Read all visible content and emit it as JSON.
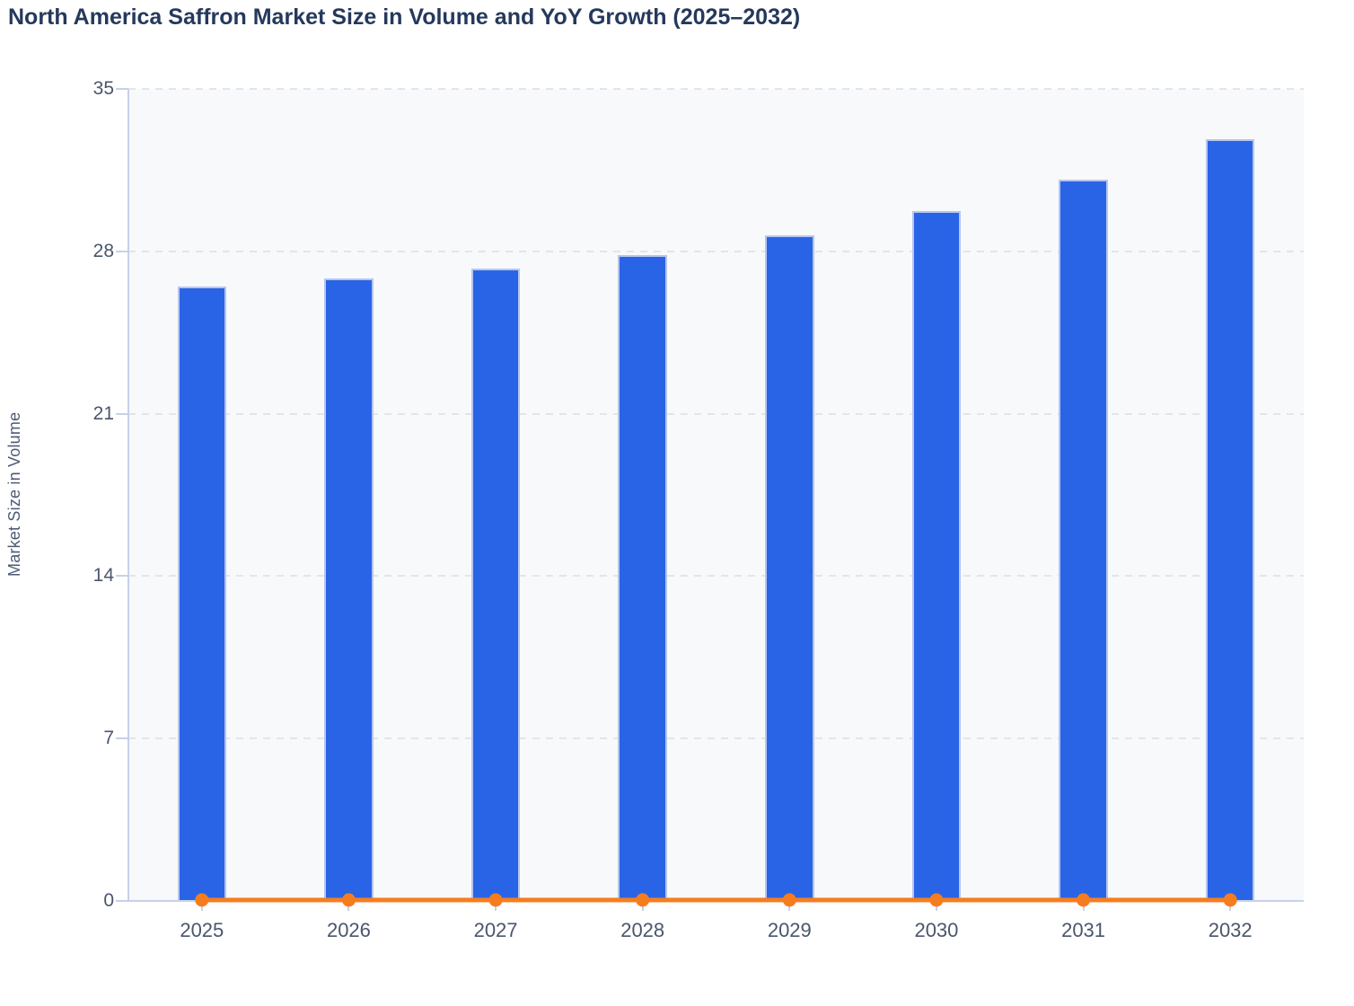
{
  "chart": {
    "title": "North America Saffron Market Size in Volume and YoY Growth (2025–2032)",
    "y_axis_title": "Market Size in Volume"
  },
  "chart_data": {
    "type": "bar",
    "title": "North America Saffron Market Size in Volume and YoY Growth (2025–2032)",
    "categories": [
      "2025",
      "2026",
      "2027",
      "2028",
      "2029",
      "2030",
      "2031",
      "2032"
    ],
    "series": [
      {
        "name": "Market Size in Volume",
        "type": "bar",
        "color": "#2a64e6",
        "values": [
          26.5,
          26.85,
          27.25,
          27.85,
          28.7,
          29.75,
          31.1,
          32.85
        ]
      },
      {
        "name": "YoY Growth",
        "type": "line",
        "color": "#f57d1f",
        "marker": "circle",
        "values": [
          0,
          0,
          0,
          0,
          0,
          0,
          0,
          0
        ]
      }
    ],
    "xlabel": "",
    "ylabel": "Market Size in Volume",
    "ylim": [
      0,
      35
    ],
    "yticks": [
      0,
      7,
      14,
      21,
      28,
      35
    ],
    "grid": "horizontal-dashed",
    "legend_position": "none",
    "plot_background": "#f8f9fb"
  },
  "colors": {
    "bar_fill": "#2a64e6",
    "bar_border": "#b7c5ee",
    "line": "#f57d1f",
    "axis": "#c7d1e7",
    "gridline": "#e2e5ec",
    "tick_label": "#4a566b",
    "title": "#25395c",
    "axis_title": "#4d5b73"
  }
}
